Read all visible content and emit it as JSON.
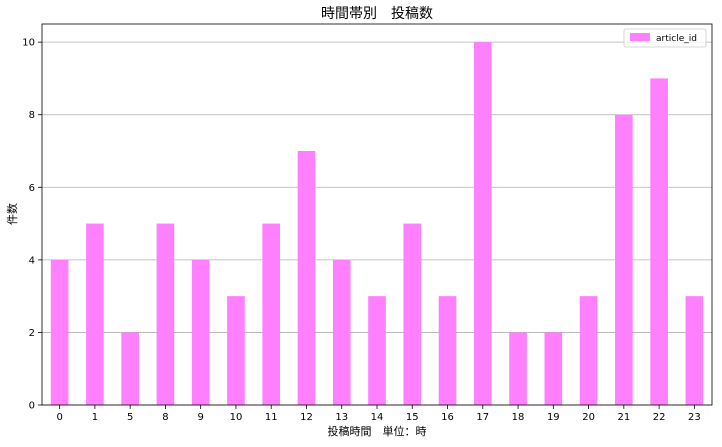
{
  "chart_data": {
    "type": "bar",
    "title": "時間帯別　投稿数",
    "xlabel": "投稿時間　単位：時",
    "ylabel": "件数",
    "categories": [
      "0",
      "1",
      "5",
      "8",
      "9",
      "10",
      "11",
      "12",
      "13",
      "14",
      "15",
      "16",
      "17",
      "18",
      "19",
      "20",
      "21",
      "22",
      "23"
    ],
    "series": [
      {
        "name": "article_id",
        "values": [
          4,
          5,
          2,
          5,
          4,
          3,
          5,
          7,
          4,
          3,
          5,
          3,
          10,
          2,
          2,
          3,
          8,
          9,
          3
        ],
        "color": "#ff80ff"
      }
    ],
    "ylim": [
      0,
      10.5
    ],
    "yticks": [
      0,
      2,
      4,
      6,
      8,
      10
    ],
    "grid": "horizontal",
    "legend_position": "top-right"
  }
}
